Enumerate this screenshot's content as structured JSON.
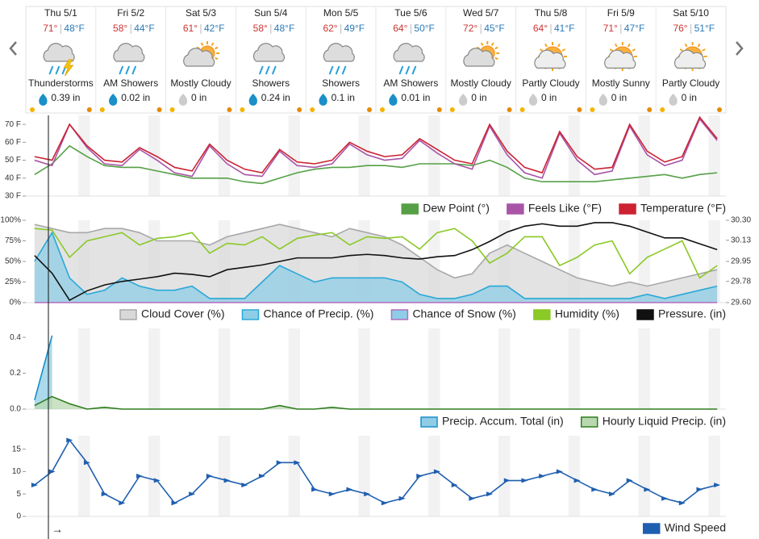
{
  "days": [
    {
      "day": "Thu 5/1",
      "high": "71°",
      "low": "48°F",
      "condition": "Thunderstorms",
      "precip": "0.39 in",
      "icon": "storm",
      "drop": "#1a8fc8"
    },
    {
      "day": "Fri 5/2",
      "high": "58°",
      "low": "44°F",
      "condition": "AM Showers",
      "precip": "0.02 in",
      "icon": "rain",
      "drop": "#1a8fc8"
    },
    {
      "day": "Sat 5/3",
      "high": "61°",
      "low": "42°F",
      "condition": "Mostly Cloudy",
      "precip": "0 in",
      "icon": "cloudsun",
      "drop": "#cccccc"
    },
    {
      "day": "Sun 5/4",
      "high": "58°",
      "low": "48°F",
      "condition": "Showers",
      "precip": "0.24 in",
      "icon": "rain",
      "drop": "#1a8fc8"
    },
    {
      "day": "Mon 5/5",
      "high": "62°",
      "low": "49°F",
      "condition": "Showers",
      "precip": "0.1 in",
      "icon": "rain",
      "drop": "#1a8fc8"
    },
    {
      "day": "Tue 5/6",
      "high": "64°",
      "low": "50°F",
      "condition": "AM Showers",
      "precip": "0.01 in",
      "icon": "rain",
      "drop": "#1a8fc8"
    },
    {
      "day": "Wed 5/7",
      "high": "72°",
      "low": "45°F",
      "condition": "Mostly Cloudy",
      "precip": "0 in",
      "icon": "cloudsun",
      "drop": "#cccccc"
    },
    {
      "day": "Thu 5/8",
      "high": "64°",
      "low": "41°F",
      "condition": "Partly Cloudy",
      "precip": "0 in",
      "icon": "suncloud",
      "drop": "#cccccc"
    },
    {
      "day": "Fri 5/9",
      "high": "71°",
      "low": "47°F",
      "condition": "Mostly Sunny",
      "precip": "0 in",
      "icon": "suncloud",
      "drop": "#cccccc"
    },
    {
      "day": "Sat 5/10",
      "high": "76°",
      "low": "51°F",
      "condition": "Partly Cloudy",
      "precip": "0 in",
      "icon": "suncloud",
      "drop": "#cccccc"
    }
  ],
  "now_label": "→",
  "chart_data": [
    {
      "type": "line",
      "xlim": [
        0,
        240
      ],
      "x": [
        3,
        9,
        15,
        21,
        27,
        33,
        39,
        45,
        51,
        57,
        63,
        69,
        75,
        81,
        87,
        93,
        99,
        105,
        111,
        117,
        123,
        129,
        135,
        141,
        147,
        153,
        159,
        165,
        171,
        177,
        183,
        189,
        195,
        201,
        207,
        213,
        219,
        225,
        231,
        237
      ],
      "ylim": [
        30,
        75
      ],
      "yticks": [
        {
          "value": 30,
          "label": "30 F"
        },
        {
          "value": 40,
          "label": "40 F"
        },
        {
          "value": 50,
          "label": "50 F"
        },
        {
          "value": 60,
          "label": "60 F"
        },
        {
          "value": 70,
          "label": "70 F"
        }
      ],
      "series": [
        {
          "name": "Dew Point (°)",
          "color": "#55a045",
          "values": [
            42,
            48,
            58,
            52,
            47,
            46,
            46,
            44,
            42,
            40,
            40,
            40,
            38,
            37,
            40,
            43,
            45,
            46,
            46,
            47,
            47,
            46,
            48,
            48,
            48,
            47,
            50,
            46,
            40,
            38,
            38,
            38,
            38,
            39,
            40,
            41,
            42,
            40,
            42,
            43
          ]
        },
        {
          "name": "Feels Like (°F)",
          "color": "#a855a8",
          "values": [
            50,
            47,
            70,
            57,
            48,
            47,
            56,
            50,
            43,
            41,
            58,
            48,
            42,
            41,
            55,
            47,
            46,
            48,
            59,
            53,
            50,
            51,
            61,
            54,
            48,
            45,
            69,
            53,
            43,
            40,
            65,
            50,
            42,
            44,
            69,
            53,
            47,
            50,
            73,
            61
          ]
        },
        {
          "name": "Temperature (°F)",
          "color": "#cc2233",
          "values": [
            52,
            50,
            70,
            58,
            50,
            49,
            57,
            52,
            46,
            44,
            59,
            50,
            45,
            43,
            56,
            49,
            48,
            50,
            60,
            55,
            52,
            53,
            62,
            56,
            50,
            48,
            70,
            55,
            46,
            43,
            66,
            52,
            45,
            46,
            70,
            55,
            49,
            52,
            74,
            62
          ]
        }
      ]
    },
    {
      "type": "line",
      "xlim": [
        0,
        240
      ],
      "x": [
        3,
        9,
        15,
        21,
        27,
        33,
        39,
        45,
        51,
        57,
        63,
        69,
        75,
        81,
        87,
        93,
        99,
        105,
        111,
        117,
        123,
        129,
        135,
        141,
        147,
        153,
        159,
        165,
        171,
        177,
        183,
        189,
        195,
        201,
        207,
        213,
        219,
        225,
        231,
        237
      ],
      "ylim": [
        0,
        100
      ],
      "yticks": [
        {
          "value": 0,
          "label": "0%"
        },
        {
          "value": 25,
          "label": "25%"
        },
        {
          "value": 50,
          "label": "50%"
        },
        {
          "value": 75,
          "label": "75%"
        },
        {
          "value": 100,
          "label": "100%"
        }
      ],
      "y2lim": [
        29.6,
        30.3
      ],
      "y2ticks": [
        {
          "value": 29.6,
          "label": "29.60"
        },
        29.78,
        29.95,
        30.13,
        {
          "value": 30.3,
          "label": "30.30"
        }
      ],
      "series": [
        {
          "name": "Cloud Cover (%)",
          "color": "#a8a8a8",
          "fill": "#d9d9d9",
          "values": [
            95,
            90,
            85,
            85,
            90,
            90,
            85,
            75,
            75,
            75,
            70,
            80,
            85,
            90,
            95,
            90,
            85,
            80,
            90,
            85,
            80,
            70,
            55,
            40,
            30,
            35,
            60,
            70,
            60,
            50,
            40,
            30,
            25,
            20,
            25,
            20,
            25,
            30,
            35,
            40
          ]
        },
        {
          "name": "Chance of Precip. (%)",
          "color": "#2aa8d8",
          "fill": "#8fcde6",
          "values": [
            50,
            85,
            30,
            10,
            15,
            30,
            20,
            15,
            15,
            20,
            5,
            5,
            5,
            25,
            45,
            35,
            25,
            30,
            30,
            30,
            30,
            25,
            10,
            5,
            5,
            10,
            20,
            20,
            5,
            5,
            5,
            5,
            5,
            5,
            5,
            10,
            5,
            10,
            15,
            20
          ]
        },
        {
          "name": "Chance of Snow (%)",
          "color": "#b46cc0",
          "fill": "#8fcde6",
          "values": [
            0,
            0,
            0,
            0,
            0,
            0,
            0,
            0,
            0,
            0,
            0,
            0,
            0,
            0,
            0,
            0,
            0,
            0,
            0,
            0,
            0,
            0,
            0,
            0,
            0,
            0,
            0,
            0,
            0,
            0,
            0,
            0,
            0,
            0,
            0,
            0,
            0,
            0,
            0,
            0
          ]
        },
        {
          "name": "Humidity (%)",
          "color": "#8ac926",
          "values": [
            90,
            88,
            55,
            75,
            80,
            85,
            70,
            78,
            80,
            85,
            60,
            72,
            70,
            80,
            65,
            78,
            82,
            85,
            70,
            80,
            78,
            80,
            65,
            85,
            90,
            75,
            48,
            60,
            80,
            80,
            45,
            55,
            70,
            75,
            35,
            55,
            65,
            75,
            30,
            45
          ]
        },
        {
          "name": "Pressure. (in)",
          "color": "#111111",
          "axis": "y2",
          "values": [
            30.0,
            29.85,
            29.62,
            29.7,
            29.75,
            29.78,
            29.8,
            29.82,
            29.85,
            29.84,
            29.82,
            29.88,
            29.9,
            29.92,
            29.95,
            29.98,
            29.98,
            29.98,
            30.0,
            30.01,
            30.0,
            29.98,
            29.97,
            29.99,
            30.0,
            30.05,
            30.12,
            30.2,
            30.25,
            30.27,
            30.25,
            30.25,
            30.28,
            30.28,
            30.25,
            30.2,
            30.15,
            30.15,
            30.1,
            30.05
          ]
        }
      ]
    },
    {
      "type": "line",
      "xlim": [
        0,
        240
      ],
      "x": [
        3,
        9,
        15,
        21,
        27,
        33,
        39,
        45,
        51,
        57,
        63,
        69,
        75,
        81,
        87,
        93,
        99,
        105,
        111,
        117,
        123,
        129,
        135,
        141,
        147,
        153,
        159,
        165,
        171,
        177,
        183,
        189,
        195,
        201,
        207,
        213,
        219,
        225,
        231,
        237
      ],
      "ylim": [
        0,
        0.45
      ],
      "yticks": [
        {
          "value": 0,
          "label": "0.0"
        },
        0.2,
        0.4
      ],
      "series": [
        {
          "name": "Precip. Accum. Total (in)",
          "color": "#1a8fc8",
          "fill": "#8fcde6",
          "values": [
            0.05,
            0.41,
            null,
            null,
            null,
            null,
            null,
            null,
            null,
            null,
            null,
            null,
            null,
            null,
            null,
            null,
            null,
            null,
            null,
            null,
            null,
            null,
            null,
            null,
            null,
            null,
            null,
            null,
            null,
            null,
            null,
            null,
            null,
            null,
            null,
            null,
            null,
            null,
            null,
            null
          ]
        },
        {
          "name": "Hourly Liquid Precip. (in)",
          "color": "#2e7d1f",
          "fill": "#b9d8b0",
          "values": [
            0.02,
            0.07,
            0.03,
            0,
            0.01,
            0,
            0,
            0,
            0,
            0,
            0,
            0,
            0,
            0,
            0.02,
            0,
            0,
            0.01,
            0,
            0,
            0,
            0,
            0,
            0,
            0,
            0,
            0,
            0,
            0,
            0,
            0,
            0,
            0,
            0,
            0,
            0,
            0,
            0,
            0,
            0
          ]
        }
      ]
    },
    {
      "type": "line",
      "xlim": [
        0,
        240
      ],
      "x": [
        3,
        9,
        15,
        21,
        27,
        33,
        39,
        45,
        51,
        57,
        63,
        69,
        75,
        81,
        87,
        93,
        99,
        105,
        111,
        117,
        123,
        129,
        135,
        141,
        147,
        153,
        159,
        165,
        171,
        177,
        183,
        189,
        195,
        201,
        207,
        213,
        219,
        225,
        231,
        237
      ],
      "ylim": [
        0,
        18
      ],
      "yticks": [
        0,
        5,
        10,
        15
      ],
      "series": [
        {
          "name": "Wind Speed",
          "color": "#1f5fb0",
          "markers": true,
          "values": [
            7,
            10,
            17,
            12,
            5,
            3,
            9,
            8,
            3,
            5,
            9,
            8,
            7,
            9,
            12,
            12,
            6,
            5,
            6,
            5,
            3,
            4,
            9,
            10,
            7,
            4,
            5,
            8,
            8,
            9,
            10,
            8,
            6,
            5,
            8,
            6,
            4,
            3,
            6,
            7
          ]
        }
      ]
    }
  ]
}
